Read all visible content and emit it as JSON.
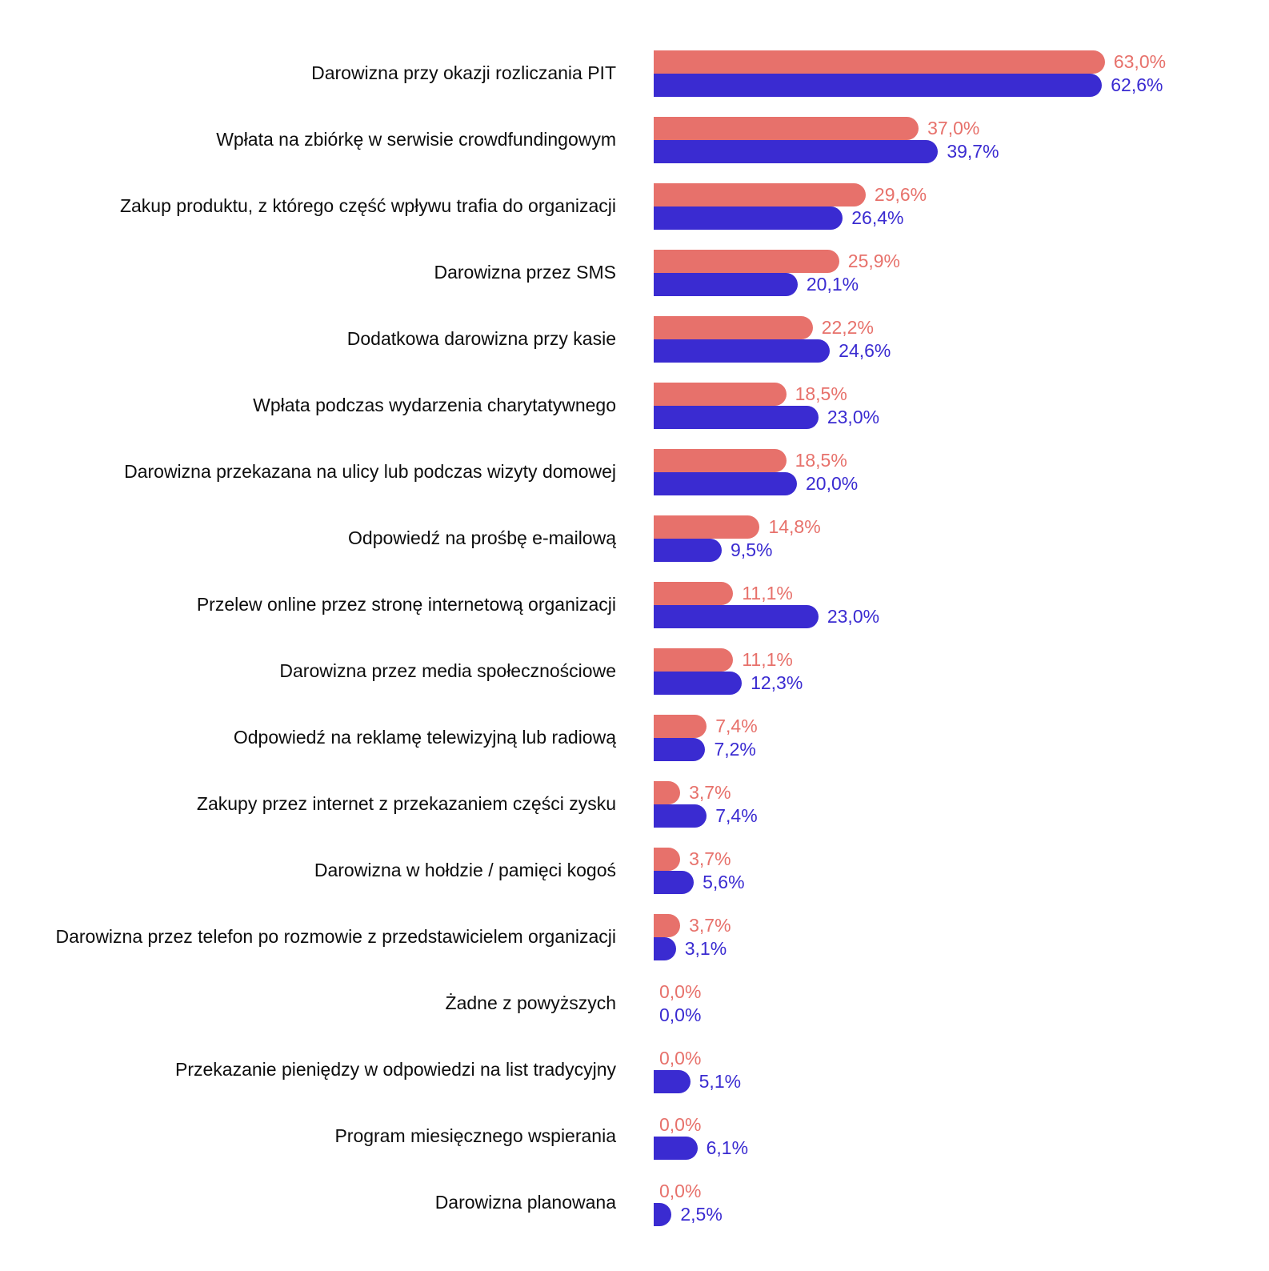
{
  "chart_data": {
    "type": "bar",
    "orientation": "horizontal",
    "title": "",
    "grid": false,
    "legend": false,
    "axes_visible": false,
    "value_suffix": "%",
    "decimal_separator": ",",
    "categories": [
      "Darowizna przy okazji rozliczania PIT",
      "Wpłata na zbiórkę w serwisie crowdfundingowym",
      "Zakup produktu, z którego część wpływu trafia do organizacji",
      "Darowizna przez SMS",
      "Dodatkowa darowizna przy kasie",
      "Wpłata podczas wydarzenia charytatywnego",
      "Darowizna przekazana na ulicy lub podczas wizyty domowej",
      "Odpowiedź na prośbę e-mailową",
      "Przelew online przez stronę internetową organizacji",
      "Darowizna przez media społecznościowe",
      "Odpowiedź na reklamę telewizyjną lub radiową",
      "Zakupy przez internet z przekazaniem części zysku",
      "Darowizna w hołdzie / pamięci kogoś",
      "Darowizna przez telefon po rozmowie z przedstawicielem organizacji",
      "Żadne z powyższych",
      "Przekazanie pieniędzy w odpowiedzi na list tradycyjny",
      "Program miesięcznego wspierania",
      "Darowizna planowana"
    ],
    "series": [
      {
        "name": "red",
        "color": "#E7716B",
        "values": [
          63.0,
          37.0,
          29.6,
          25.9,
          22.2,
          18.5,
          18.5,
          14.8,
          11.1,
          11.1,
          7.4,
          3.7,
          3.7,
          3.7,
          0.0,
          0.0,
          0.0,
          0.0
        ],
        "labels": [
          "63,0%",
          "37,0%",
          "29,6%",
          "25,9%",
          "22,2%",
          "18,5%",
          "18,5%",
          "14,8%",
          "11,1%",
          "11,1%",
          "7,4%",
          "3,7%",
          "3,7%",
          "3,7%",
          "0,0%",
          "0,0%",
          "0,0%",
          "0,0%"
        ]
      },
      {
        "name": "blue",
        "color": "#3A2BD1",
        "values": [
          62.6,
          39.7,
          26.4,
          20.1,
          24.6,
          23.0,
          20.0,
          9.5,
          23.0,
          12.3,
          7.2,
          7.4,
          5.6,
          3.1,
          0.0,
          5.1,
          6.1,
          2.5
        ],
        "labels": [
          "62,6%",
          "39,7%",
          "26,4%",
          "20,1%",
          "24,6%",
          "23,0%",
          "20,0%",
          "9,5%",
          "23,0%",
          "12,3%",
          "7,2%",
          "7,4%",
          "5,6%",
          "3,1%",
          "0,0%",
          "5,1%",
          "6,1%",
          "2,5%"
        ]
      }
    ]
  }
}
